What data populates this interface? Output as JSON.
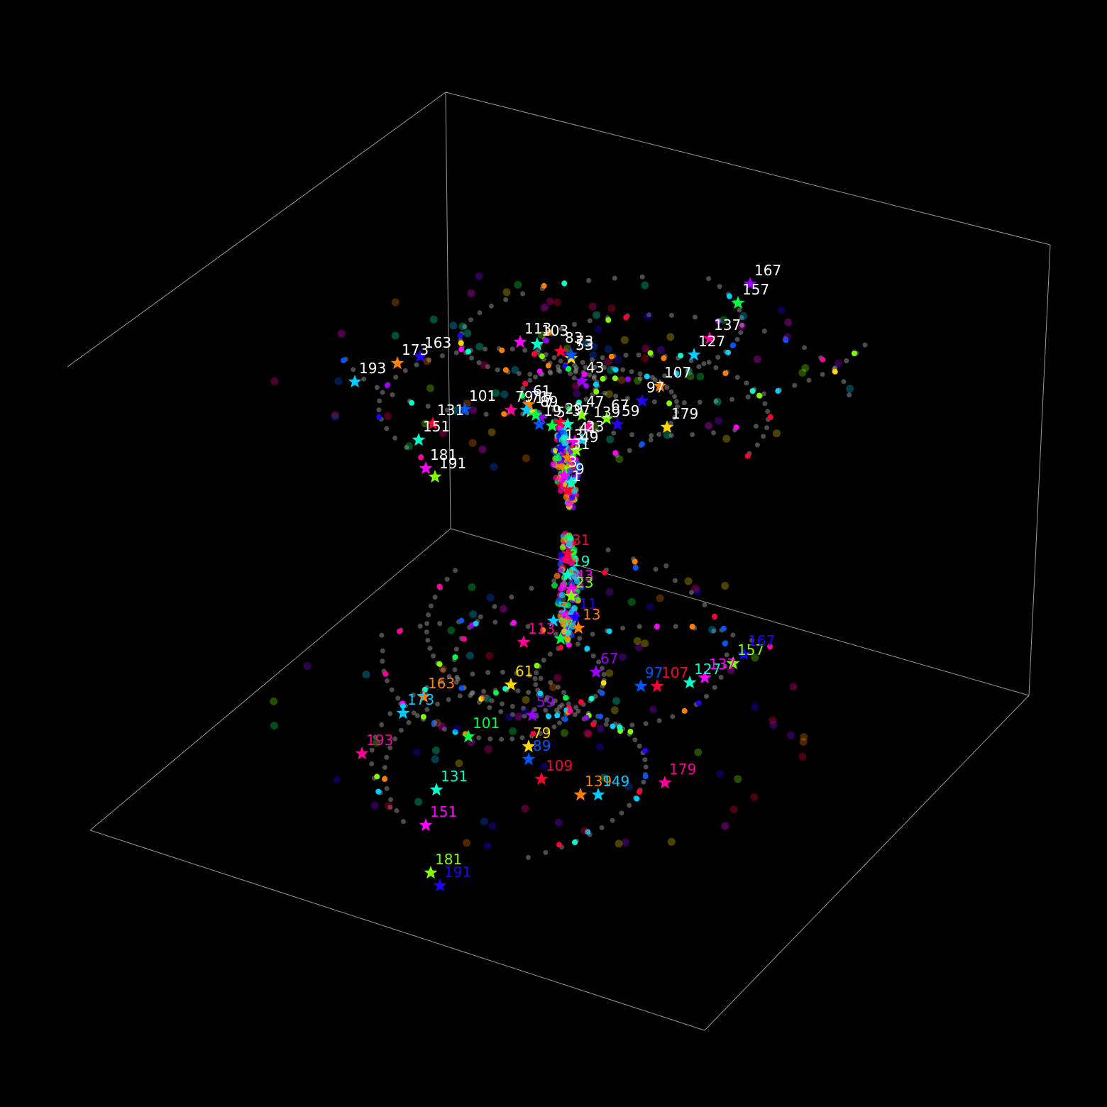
{
  "chart_data": {
    "type": "scatter",
    "projection": "3d",
    "background": "#000000",
    "box_edge_color": "#9a9a9a",
    "description_free": true,
    "title": "",
    "xlabel": "",
    "ylabel": "",
    "zlabel": "",
    "grid": false,
    "legend": "none",
    "trail_color": "#8a8a8a",
    "prime_labels": [
      1,
      3,
      5,
      7,
      11,
      13,
      17,
      19,
      23,
      29,
      31,
      37,
      41,
      43,
      47,
      53,
      59,
      61,
      67,
      71,
      73,
      79,
      83,
      89,
      97,
      101,
      103,
      107,
      109,
      113,
      127,
      131,
      137,
      139,
      149,
      151,
      157,
      163,
      167,
      173,
      179,
      181,
      191,
      193
    ],
    "upper_labels": [
      "1",
      "9",
      "3",
      "49",
      "13",
      "31",
      "23",
      "139",
      "5",
      "7",
      "17",
      "19",
      "29",
      "37",
      "41",
      "47",
      "59",
      "61",
      "71",
      "79",
      "89",
      "43",
      "53",
      "73",
      "83",
      "103",
      "113",
      "67",
      "97",
      "107",
      "127",
      "137",
      "157",
      "167",
      "179",
      "101",
      "131",
      "151",
      "181",
      "191",
      "163",
      "173",
      "193"
    ],
    "lower_labels": [
      "31",
      "19",
      "43",
      "23",
      "11",
      "13",
      "5",
      "113",
      "7",
      "67",
      "61",
      "97",
      "107",
      "127",
      "137",
      "157",
      "167",
      "163",
      "173",
      "193",
      "101",
      "59",
      "79",
      "89",
      "109",
      "131",
      "151",
      "181",
      "191",
      "139",
      "149",
      "179"
    ],
    "series": [
      {
        "name": "upper",
        "label_color": "#ffffff"
      },
      {
        "name": "lower",
        "label_color": "by-marker"
      }
    ]
  }
}
